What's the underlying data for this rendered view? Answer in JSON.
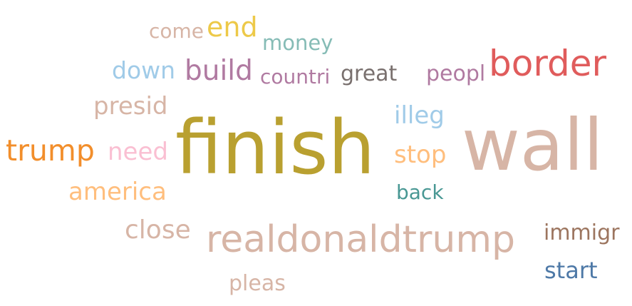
{
  "words": [
    {
      "text": "wall",
      "color": "#d7b5a6"
    },
    {
      "text": "finish",
      "color": "#b9a030"
    },
    {
      "text": "realdonaldtrump",
      "color": "#d7b5a6"
    },
    {
      "text": "border",
      "color": "#e05c5c"
    },
    {
      "text": "trump",
      "color": "#f28e2b"
    },
    {
      "text": "build",
      "color": "#b07aa1"
    },
    {
      "text": "end",
      "color": "#edc948"
    },
    {
      "text": "close",
      "color": "#d7b5a6"
    },
    {
      "text": "america",
      "color": "#ffbe7d"
    },
    {
      "text": "need",
      "color": "#fabfd2"
    },
    {
      "text": "presid",
      "color": "#d7b5a6"
    },
    {
      "text": "illeg",
      "color": "#a0cbe8"
    },
    {
      "text": "stop",
      "color": "#ffbe7d"
    },
    {
      "text": "down",
      "color": "#a0cbe8"
    },
    {
      "text": "start",
      "color": "#4e79a7"
    },
    {
      "text": "great",
      "color": "#79706e"
    },
    {
      "text": "peopl",
      "color": "#b07aa1"
    },
    {
      "text": "immigr",
      "color": "#9c755f"
    },
    {
      "text": "money",
      "color": "#86bcb6"
    },
    {
      "text": "come",
      "color": "#d7b5a6"
    },
    {
      "text": "countri",
      "color": "#b07aa1"
    },
    {
      "text": "back",
      "color": "#499894"
    },
    {
      "text": "pleas",
      "color": "#d7b5a6"
    }
  ]
}
